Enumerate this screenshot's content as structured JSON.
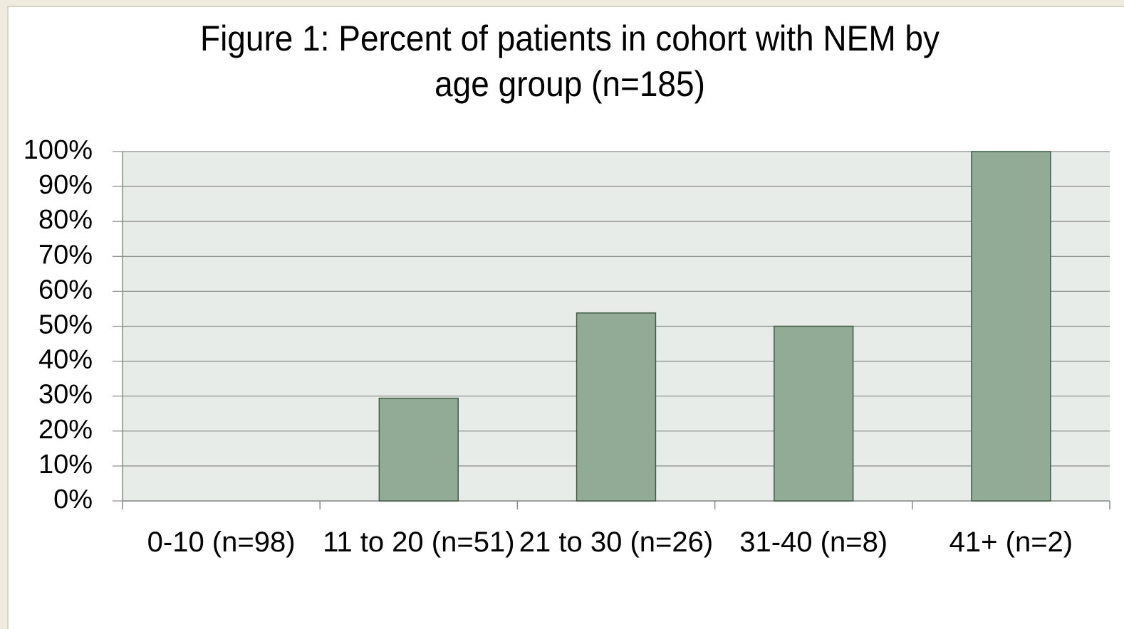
{
  "chart_data": {
    "type": "bar",
    "title": "Figure 1: Percent of patients in cohort with NEM by age group (n=185)",
    "categories": [
      "0-10 (n=98)",
      "11 to 20 (n=51)",
      "21 to 30 (n=26)",
      "31-40 (n=8)",
      "41+ (n=2)"
    ],
    "values": [
      0,
      29.4,
      53.8,
      50,
      100
    ],
    "color": "#92ab96",
    "ylim": [
      0,
      100
    ],
    "yticks": [
      {
        "value": 0,
        "label": "0%"
      },
      {
        "value": 10,
        "label": "10%"
      },
      {
        "value": 20,
        "label": "20%"
      },
      {
        "value": 30,
        "label": "30%"
      },
      {
        "value": 40,
        "label": "40%"
      },
      {
        "value": 50,
        "label": "50%"
      },
      {
        "value": 60,
        "label": "60%"
      },
      {
        "value": 70,
        "label": "70%"
      },
      {
        "value": 80,
        "label": "80%"
      },
      {
        "value": 90,
        "label": "90%"
      },
      {
        "value": 100,
        "label": "100%"
      }
    ],
    "grid": true
  }
}
